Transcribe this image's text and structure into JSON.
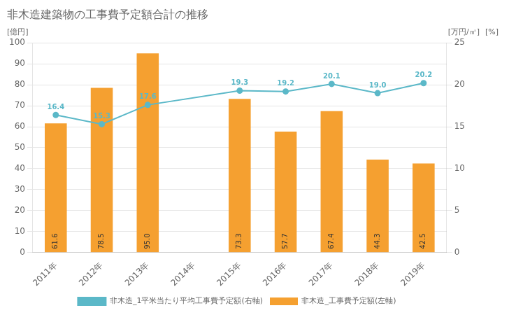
{
  "chart_data": {
    "type": "bar",
    "title": "非木造建築物の工事費予定額合計の推移",
    "categories": [
      "2011年",
      "2012年",
      "2013年",
      "2014年",
      "2015年",
      "2016年",
      "2017年",
      "2018年",
      "2019年"
    ],
    "series": [
      {
        "name": "非木造_工事費予定額(左軸)",
        "type": "bar",
        "color": "#f5a030",
        "values": [
          61.6,
          78.5,
          95.0,
          null,
          73.3,
          57.7,
          67.4,
          44.3,
          42.5
        ],
        "value_labels": [
          "61.6",
          "78.5",
          "95.0",
          null,
          "73.3",
          "57.7",
          "67.4",
          "44.3",
          "42.5"
        ]
      },
      {
        "name": "非木造_1平米当たり平均工事費予定額(右軸)",
        "type": "line",
        "axis": "y2",
        "color": "#5bb8c8",
        "marker": "circle",
        "values": [
          16.4,
          15.3,
          17.6,
          null,
          19.3,
          19.2,
          20.1,
          19.0,
          20.2
        ],
        "value_labels": [
          "16.4",
          "15.3",
          "17.6",
          null,
          "19.3",
          "19.2",
          "20.1",
          "19.0",
          "20.2"
        ]
      }
    ],
    "ylabel": "[億円]",
    "y2label": "[万円/㎡]",
    "annotations": [
      "[%]"
    ],
    "ylim": [
      0,
      100
    ],
    "yticks": [
      0,
      10,
      20,
      30,
      40,
      50,
      60,
      70,
      80,
      90,
      100
    ],
    "y2lim": [
      0,
      25.0
    ],
    "y2ticks": [
      0.0,
      5.0,
      10.0,
      15.0,
      20.0,
      25.0
    ],
    "grid": true,
    "legend": "bottom",
    "data_labels": true
  }
}
